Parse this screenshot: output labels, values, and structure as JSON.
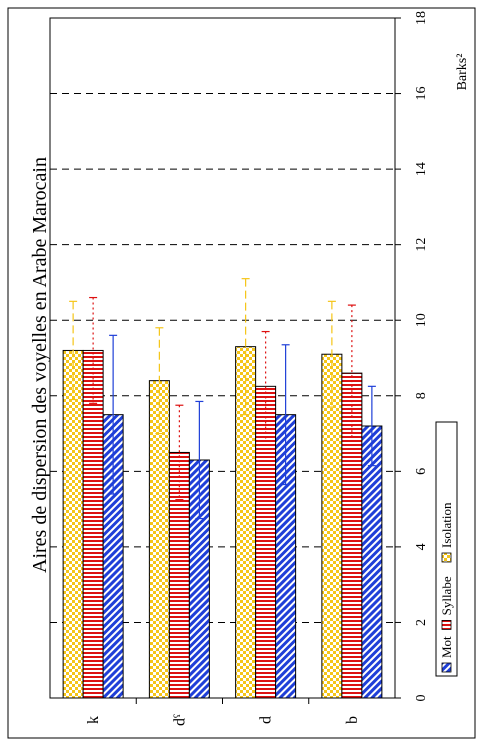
{
  "chart_data": {
    "type": "bar",
    "orientation": "horizontal",
    "title": "Aires de dispersion des voyelles en Arabe Marocain",
    "value_axis_label": "Barks²",
    "categories": [
      "k",
      "dˤ",
      "d",
      "b"
    ],
    "series": [
      {
        "name": "Isolation",
        "values": [
          9.2,
          8.4,
          9.3,
          9.1
        ],
        "error": [
          1.3,
          1.4,
          1.8,
          1.4
        ],
        "color": "#f5c518"
      },
      {
        "name": "Syllabe",
        "values": [
          9.2,
          6.5,
          8.25,
          8.6
        ],
        "error": [
          1.4,
          1.25,
          1.45,
          1.8
        ],
        "color": "#dd1111"
      },
      {
        "name": "Mot",
        "values": [
          7.5,
          6.3,
          7.5,
          7.2
        ],
        "error": [
          2.1,
          1.55,
          1.85,
          1.05
        ],
        "color": "#1f3fd8"
      }
    ],
    "legend_order": [
      "Mot",
      "Syllabe",
      "Isolation"
    ],
    "value_ticks": [
      "0",
      "2",
      "4",
      "6",
      "8",
      "10",
      "12",
      "14",
      "16",
      "18"
    ],
    "xlim": [
      0,
      18
    ],
    "grid": true,
    "legend_position": "bottom-right"
  }
}
